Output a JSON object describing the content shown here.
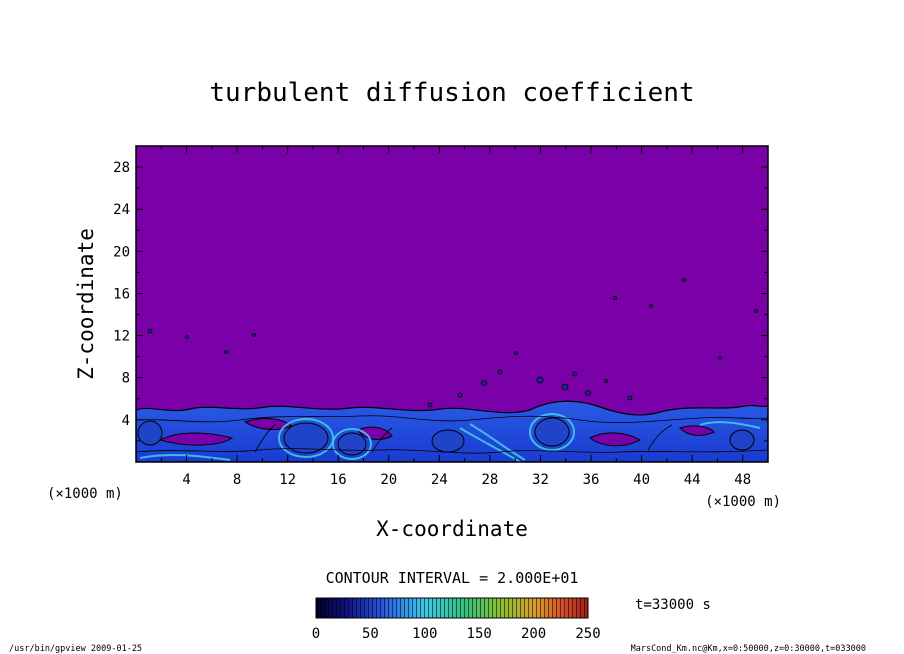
{
  "chart_data": {
    "type": "heatmap",
    "title": "turbulent diffusion coefficient",
    "xlabel": "X-coordinate",
    "ylabel": "Z-coordinate",
    "x_unit_left": "(×1000 m)",
    "x_unit_right": "(×1000 m)",
    "xlim": [
      0,
      50
    ],
    "ylim": [
      0,
      30
    ],
    "x_ticks": [
      "4",
      "8",
      "12",
      "16",
      "20",
      "24",
      "28",
      "32",
      "36",
      "40",
      "44",
      "48"
    ],
    "y_ticks": [
      "4",
      "8",
      "12",
      "16",
      "20",
      "24",
      "28"
    ],
    "contour_interval_label": "CONTOUR INTERVAL = 2.000E+01",
    "time_label": "t=33000 s",
    "colorbar": {
      "range": [
        0,
        250
      ],
      "tick_labels": [
        "0",
        "50",
        "100",
        "150",
        "200",
        "250"
      ],
      "colors": [
        "#000033",
        "#1a1aa6",
        "#2a6fe0",
        "#3fc8e8",
        "#35c080",
        "#55cc33",
        "#a8c030",
        "#d89a2a",
        "#d8542a",
        "#a0201a"
      ]
    },
    "background_color": "#7a00a8",
    "boundary_layer_top_km": 5,
    "footer_left": "/usr/bin/gpview  2009-01-25",
    "footer_right": "MarsCond_Km.nc@Km,x=0:50000,z=0:30000,t=033000"
  }
}
